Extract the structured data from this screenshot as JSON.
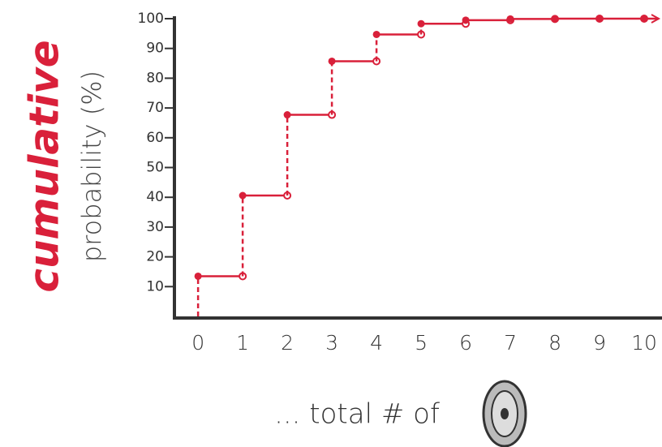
{
  "chart_data": {
    "type": "step",
    "y_label_emphasis": "cumulative",
    "y_label": "probability (%)",
    "x_label": "... total # of",
    "x": [
      0,
      1,
      2,
      3,
      4,
      5,
      6,
      7,
      8,
      9,
      10
    ],
    "series": [
      {
        "name": "cumulative probability",
        "color": "#d9203a",
        "values": [
          13.5,
          40.6,
          67.7,
          85.7,
          94.7,
          98.3,
          99.5,
          99.9,
          100,
          100,
          100
        ]
      }
    ],
    "xlim": [
      -0.53,
      10.4
    ],
    "xticks": [
      0,
      1,
      2,
      3,
      4,
      5,
      6,
      7,
      8,
      9,
      10
    ],
    "ylim": [
      0,
      100
    ],
    "yticks": [
      10,
      20,
      30,
      40,
      50,
      60,
      70,
      80,
      90,
      100
    ],
    "grid": false
  }
}
